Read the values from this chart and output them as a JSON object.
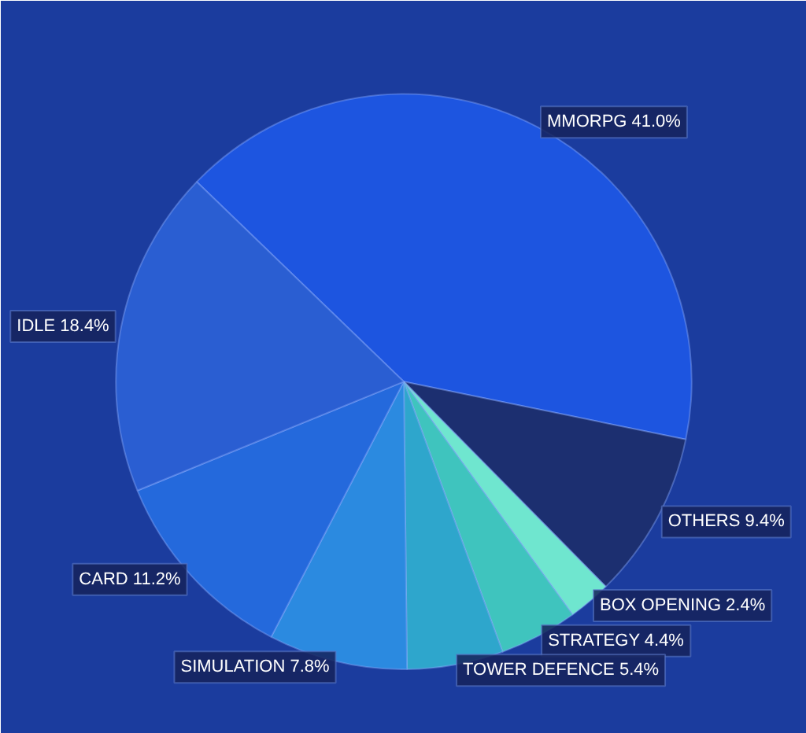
{
  "chart_data": {
    "type": "pie",
    "categories": [
      "MMORPG",
      "OTHERS",
      "BOX OPENING",
      "STRATEGY",
      "TOWER DEFENCE",
      "SIMULATION",
      "CARD",
      "IDLE"
    ],
    "values": [
      41.0,
      9.4,
      2.4,
      4.4,
      5.4,
      7.8,
      11.2,
      18.4
    ],
    "value_labels": [
      "41.0%",
      "9.4%",
      "2.4%",
      "4.4%",
      "5.4%",
      "7.8%",
      "11.2%",
      "18.4%"
    ],
    "colors": [
      "#1d55e0",
      "#1c2f70",
      "#6fe6cf",
      "#3fc4be",
      "#2ea6cc",
      "#2b8ae0",
      "#2469dc",
      "#2a5ed2"
    ]
  }
}
